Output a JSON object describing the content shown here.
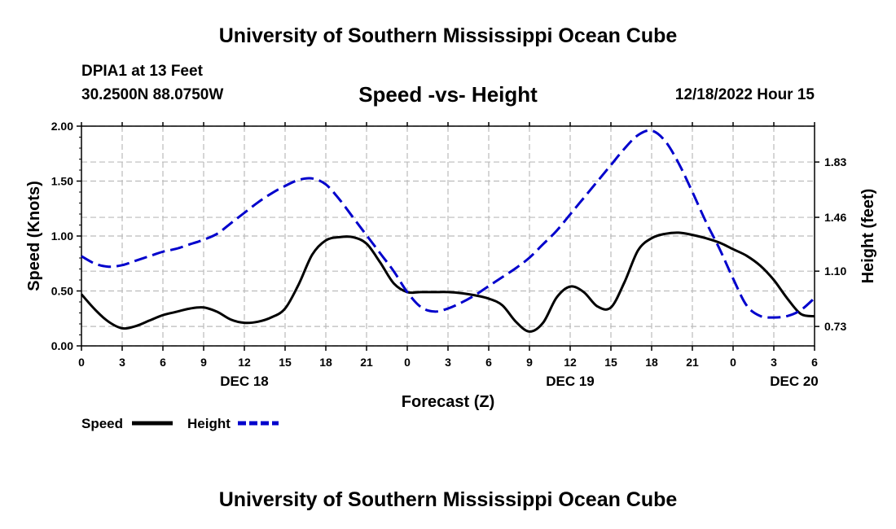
{
  "header": {
    "org_title": "University of Southern Mississippi Ocean Cube",
    "station": "DPIA1 at 13 Feet",
    "coords": "30.2500N  88.0750W",
    "datetime": "12/18/2022 Hour 15",
    "footer_title": "University of Southern Mississippi Ocean Cube"
  },
  "chart_data": {
    "type": "line",
    "title": "Speed -vs- Height",
    "xlabel": "Forecast (Z)",
    "ylabel": "Speed (Knots)",
    "y2label": "Height (feet)",
    "x_ticks": [
      0,
      3,
      6,
      9,
      12,
      15,
      18,
      21,
      24,
      27,
      30,
      33,
      36,
      39,
      42,
      45,
      48,
      51,
      54
    ],
    "x_tick_labels": [
      "0",
      "3",
      "6",
      "9",
      "12",
      "15",
      "18",
      "21",
      "0",
      "3",
      "6",
      "9",
      "12",
      "15",
      "18",
      "21",
      "0",
      "3",
      "6"
    ],
    "date_labels": [
      {
        "x": 12,
        "label": "DEC 18"
      },
      {
        "x": 36,
        "label": "DEC 19"
      },
      {
        "x": 52.5,
        "label": "DEC 20"
      }
    ],
    "xlim": [
      0,
      54
    ],
    "ylim": [
      0,
      2.0
    ],
    "y_ticks": [
      0.0,
      0.5,
      1.0,
      1.5,
      2.0
    ],
    "y_tick_labels": [
      "0.00",
      "0.50",
      "1.00",
      "1.50",
      "2.00"
    ],
    "y2lim": [
      0.6,
      2.07
    ],
    "y2_ticks": [
      0.73,
      1.1,
      1.46,
      1.83
    ],
    "y2_tick_labels": [
      "0.73",
      "1.10",
      "1.46",
      "1.83"
    ],
    "grid": true,
    "legend": [
      {
        "name": "Speed",
        "color": "#000000",
        "style": "solid"
      },
      {
        "name": "Height",
        "color": "#0000cc",
        "style": "dashed"
      }
    ],
    "series": [
      {
        "name": "Speed",
        "axis": "left",
        "color": "#000000",
        "x": [
          0,
          1,
          2,
          3,
          4,
          5,
          6,
          7,
          8,
          9,
          10,
          11,
          12,
          13,
          14,
          15,
          16,
          17,
          18,
          19,
          20,
          21,
          22,
          23,
          24,
          25,
          26,
          27,
          28,
          29,
          30,
          31,
          32,
          33,
          34,
          35,
          36,
          37,
          38,
          39,
          40,
          41,
          42,
          43,
          44,
          45,
          46,
          47,
          48,
          49,
          50,
          51,
          52,
          53,
          54
        ],
        "values": [
          0.47,
          0.33,
          0.22,
          0.16,
          0.18,
          0.23,
          0.28,
          0.31,
          0.34,
          0.35,
          0.31,
          0.24,
          0.21,
          0.22,
          0.26,
          0.34,
          0.56,
          0.83,
          0.96,
          0.99,
          0.99,
          0.93,
          0.76,
          0.57,
          0.49,
          0.49,
          0.49,
          0.49,
          0.48,
          0.46,
          0.43,
          0.37,
          0.22,
          0.13,
          0.21,
          0.44,
          0.54,
          0.49,
          0.36,
          0.35,
          0.58,
          0.87,
          0.98,
          1.02,
          1.03,
          1.01,
          0.98,
          0.94,
          0.88,
          0.82,
          0.73,
          0.6,
          0.43,
          0.29,
          0.27
        ]
      },
      {
        "name": "Height",
        "axis": "right",
        "color": "#0000cc",
        "x": [
          0,
          1,
          2,
          3,
          4,
          5,
          6,
          7,
          8,
          9,
          10,
          11,
          12,
          13,
          14,
          15,
          16,
          17,
          18,
          19,
          20,
          21,
          22,
          23,
          24,
          25,
          26,
          27,
          28,
          29,
          30,
          31,
          32,
          33,
          34,
          35,
          36,
          37,
          38,
          39,
          40,
          41,
          42,
          43,
          44,
          45,
          46,
          47,
          48,
          49,
          50,
          51,
          52,
          53,
          54
        ],
        "values": [
          1.2,
          1.15,
          1.13,
          1.14,
          1.17,
          1.2,
          1.23,
          1.25,
          1.28,
          1.31,
          1.35,
          1.42,
          1.49,
          1.56,
          1.62,
          1.67,
          1.71,
          1.72,
          1.68,
          1.58,
          1.46,
          1.34,
          1.22,
          1.1,
          0.96,
          0.86,
          0.83,
          0.85,
          0.89,
          0.94,
          1.0,
          1.06,
          1.12,
          1.19,
          1.28,
          1.37,
          1.48,
          1.59,
          1.7,
          1.81,
          1.92,
          2.01,
          2.04,
          1.97,
          1.82,
          1.63,
          1.43,
          1.25,
          1.05,
          0.87,
          0.8,
          0.79,
          0.8,
          0.84,
          0.92
        ]
      }
    ]
  }
}
